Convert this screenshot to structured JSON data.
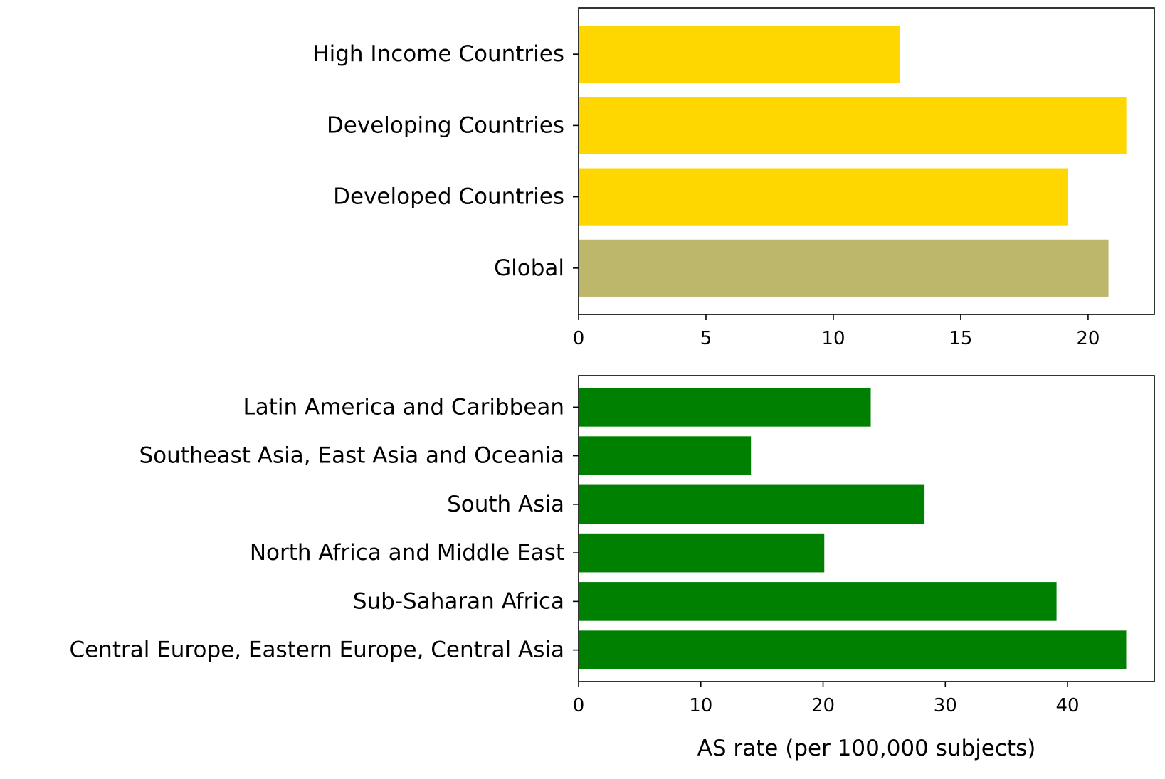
{
  "chart_data": [
    {
      "type": "bar",
      "orientation": "horizontal",
      "categories": [
        "Global",
        "Developed Countries",
        "Developing Countries",
        "High Income Countries"
      ],
      "values": [
        20.8,
        19.2,
        21.5,
        12.6
      ],
      "colors": [
        "#bdb76b",
        "#ffd700",
        "#ffd700",
        "#ffd700"
      ],
      "xticks": [
        0,
        5,
        10,
        15,
        20
      ],
      "xlim": [
        0,
        22.6
      ],
      "xlabel": "",
      "ylabel": "",
      "title": "",
      "grid": false
    },
    {
      "type": "bar",
      "orientation": "horizontal",
      "categories": [
        "Central Europe, Eastern Europe, Central Asia",
        "Sub-Saharan Africa",
        "North Africa and Middle East",
        "South Asia",
        "Southeast Asia, East Asia and Oceania",
        "Latin America and Caribbean"
      ],
      "values": [
        44.8,
        39.1,
        20.1,
        28.3,
        14.1,
        23.9
      ],
      "colors": [
        "#008000",
        "#008000",
        "#008000",
        "#008000",
        "#008000",
        "#008000"
      ],
      "xticks": [
        0,
        10,
        20,
        30,
        40
      ],
      "xlim": [
        0,
        47.1
      ],
      "xlabel": "AS rate (per 100,000 subjects)",
      "ylabel": "",
      "title": "",
      "grid": false
    }
  ]
}
